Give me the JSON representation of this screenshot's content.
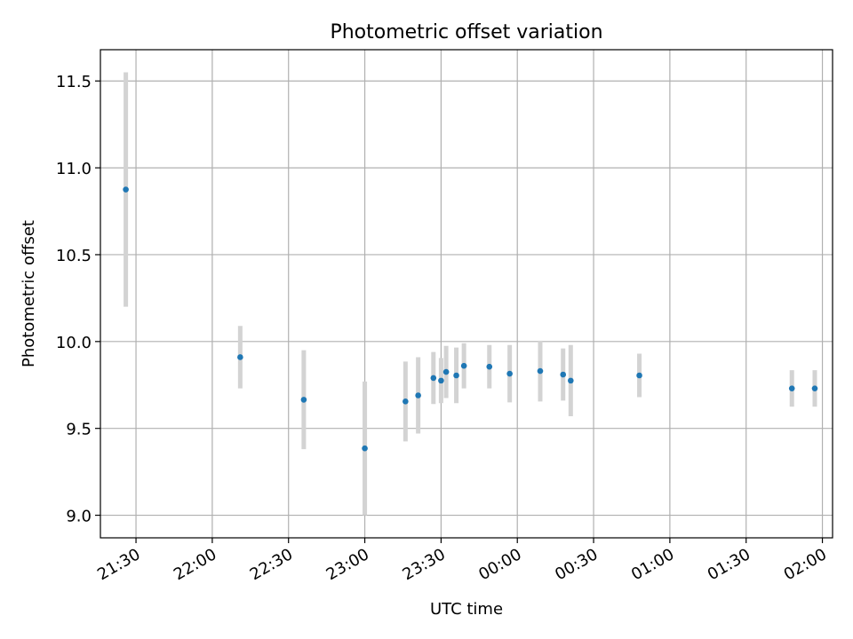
{
  "chart_data": {
    "type": "scatter",
    "title": "Photometric offset variation",
    "xlabel": "UTC time",
    "ylabel": "Photometric offset",
    "x_ticks": [
      "21:30",
      "22:00",
      "22:30",
      "23:00",
      "23:30",
      "00:00",
      "00:30",
      "01:00",
      "01:30",
      "02:00"
    ],
    "y_ticks": [
      "9.0",
      "9.5",
      "10.0",
      "10.5",
      "11.0",
      "11.5"
    ],
    "xlim": [
      "21:16",
      "02:04"
    ],
    "ylim": [
      8.87,
      11.68
    ],
    "grid": true,
    "colors": {
      "point": "#1f77b4",
      "errorbar": "#d3d3d3",
      "grid": "#b0b0b0"
    },
    "points": [
      {
        "x": "21:26",
        "y": 10.875,
        "err": 0.675
      },
      {
        "x": "22:11",
        "y": 9.91,
        "err": 0.18
      },
      {
        "x": "22:36",
        "y": 9.665,
        "err": 0.285
      },
      {
        "x": "23:00",
        "y": 9.385,
        "err": 0.385
      },
      {
        "x": "23:16",
        "y": 9.655,
        "err": 0.23
      },
      {
        "x": "23:21",
        "y": 9.69,
        "err": 0.22
      },
      {
        "x": "23:27",
        "y": 9.79,
        "err": 0.15
      },
      {
        "x": "23:30",
        "y": 9.775,
        "err": 0.13
      },
      {
        "x": "23:32",
        "y": 9.825,
        "err": 0.15
      },
      {
        "x": "23:36",
        "y": 9.805,
        "err": 0.16
      },
      {
        "x": "23:39",
        "y": 9.86,
        "err": 0.13
      },
      {
        "x": "23:49",
        "y": 9.855,
        "err": 0.125
      },
      {
        "x": "23:57",
        "y": 9.815,
        "err": 0.165
      },
      {
        "x": "00:09",
        "y": 9.83,
        "err": 0.175
      },
      {
        "x": "00:18",
        "y": 9.81,
        "err": 0.15
      },
      {
        "x": "00:21",
        "y": 9.775,
        "err": 0.205
      },
      {
        "x": "00:48",
        "y": 9.805,
        "err": 0.125
      },
      {
        "x": "01:48",
        "y": 9.73,
        "err": 0.105
      },
      {
        "x": "01:57",
        "y": 9.73,
        "err": 0.105
      }
    ]
  }
}
